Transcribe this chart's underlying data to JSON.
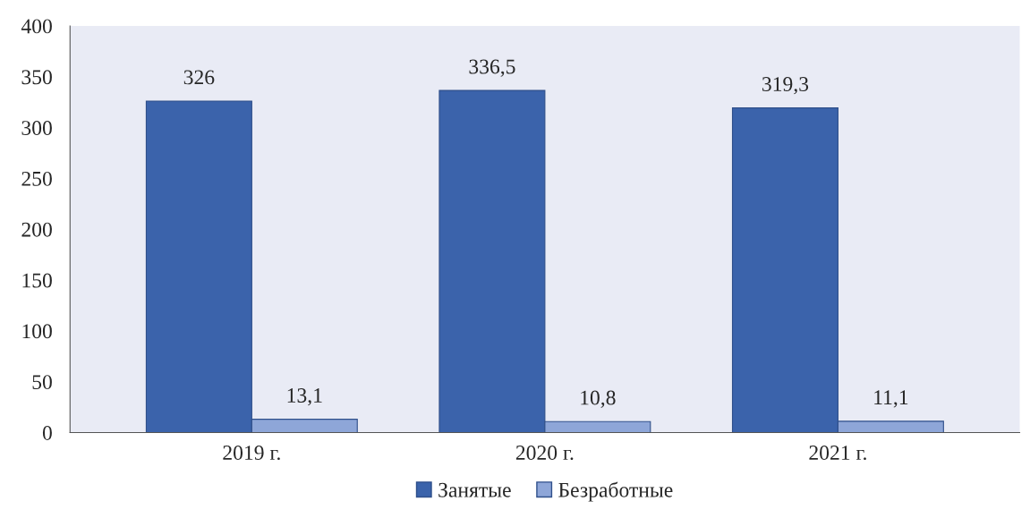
{
  "chart_data": {
    "type": "bar",
    "categories": [
      "2019 г.",
      "2020 г.",
      "2021 г."
    ],
    "series": [
      {
        "name": "Занятые",
        "color": "#3b63ab",
        "values": [
          326,
          336.5,
          319.3
        ],
        "value_labels": [
          "326",
          "336,5",
          "319,3"
        ]
      },
      {
        "name": "Безработные",
        "color": "#8ea6d8",
        "values": [
          13.1,
          10.8,
          11.1
        ],
        "value_labels": [
          "13,1",
          "10,8",
          "11,1"
        ]
      }
    ],
    "ylim": [
      0,
      400
    ],
    "yticks": [
      0,
      50,
      100,
      150,
      200,
      250,
      300,
      350,
      400
    ],
    "grid": false,
    "legend": "bottom"
  }
}
